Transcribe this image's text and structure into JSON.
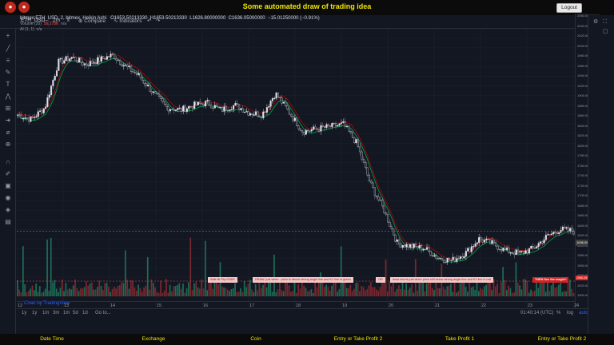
{
  "header": {
    "title": "Some automated draw of trading idea",
    "logout_label": "Logout"
  },
  "toolbar": {
    "symbol": "ETH_USD",
    "interval": "2m",
    "compare_label": "Compare",
    "indicators_label": "Indicators"
  },
  "legend": {
    "title": "bitmex:ETH_USD, 2, bitmex, Heikin Ashi",
    "open": "O1653.50213330",
    "high": "H1653.50213330",
    "low": "L1626.80000000",
    "close": "C1636.05000000",
    "change": "−15.01250000 (−0.91%)",
    "volume_label": "Volume (20)",
    "volume_value": "56.278K",
    "volume_na": "n/a",
    "ai_label": "AI (1, 1)",
    "ai_na": "n/a"
  },
  "price_axis": {
    "ticks": [
      "2060.00000000",
      "2040.00000000",
      "2020.00000000",
      "2000.00000000",
      "1980.00000000",
      "1960.00000000",
      "1940.00000000",
      "1920.00000000",
      "1900.00000000",
      "1880.00000000",
      "1860.00000000",
      "1840.00000000",
      "1820.00000000",
      "1800.00000000",
      "1780.00000000",
      "1760.00000000",
      "1740.00000000",
      "1720.00000000",
      "1700.00000000",
      "1680.00000000",
      "1660.00000000",
      "1640.00000000",
      "1620.00000000",
      "1600.00000000",
      "1580.00000000",
      "1560.00000000",
      "1540.00000000",
      "1520.00000000",
      "1500.00000000"
    ],
    "current_price": "1636.05000000",
    "alert_price": "1566.20000000"
  },
  "time_axis": {
    "labels": [
      "12",
      "13",
      "14",
      "15",
      "16",
      "17",
      "18",
      "19",
      "20",
      "21",
      "22",
      "23",
      "24"
    ]
  },
  "bottom_bar": {
    "ranges": [
      "1y",
      "1y",
      "1m",
      "3m",
      "1m",
      "5d",
      "1d",
      "Go to..."
    ],
    "clock": "01:40:14 (UTC)",
    "pct": "%",
    "log": "log",
    "auto": "auto"
  },
  "annotations": {
    "a1": "Wait till Flip ENDE",
    "a2": "DRAW: just when : price is above strong angle line and K1 line in green",
    "a3": "OR",
    "a4": "draw shorts just when price still below strong angle line and K1 line in red",
    "a5": "THEN See the magic!!"
  },
  "watermark": "Chart by TradingView",
  "footer": {
    "cols": [
      "Date Time",
      "Exchange",
      "Coin",
      "Entry or Take Profit 2",
      "Take Profit 1",
      "Entry or Take Profit 2"
    ]
  },
  "chart_data": {
    "type": "candlestick",
    "x_labels": [
      "12",
      "13",
      "14",
      "15",
      "16",
      "17",
      "18",
      "19",
      "20",
      "21",
      "22",
      "23",
      "24"
    ],
    "ylim": [
      1500,
      2060
    ],
    "close_path": [
      1880,
      1870,
      1895,
      1990,
      2000,
      1985,
      1995,
      2005,
      1980,
      1960,
      1925,
      1895,
      1890,
      1900,
      1905,
      1890,
      1900,
      1885,
      1880,
      1925,
      1885,
      1845,
      1850,
      1855,
      1860,
      1820,
      1735,
      1680,
      1610,
      1605,
      1600,
      1580,
      1575,
      1590,
      1620,
      1610,
      1595,
      1590,
      1600,
      1625,
      1640,
      1636
    ],
    "series_colors": {
      "up": "#26a69a",
      "down": "#ef5350",
      "volume_up": "#1e7b5f",
      "volume_down": "#8e2a30",
      "ma_green": "#00c853",
      "ma_red": "#d50000"
    }
  }
}
